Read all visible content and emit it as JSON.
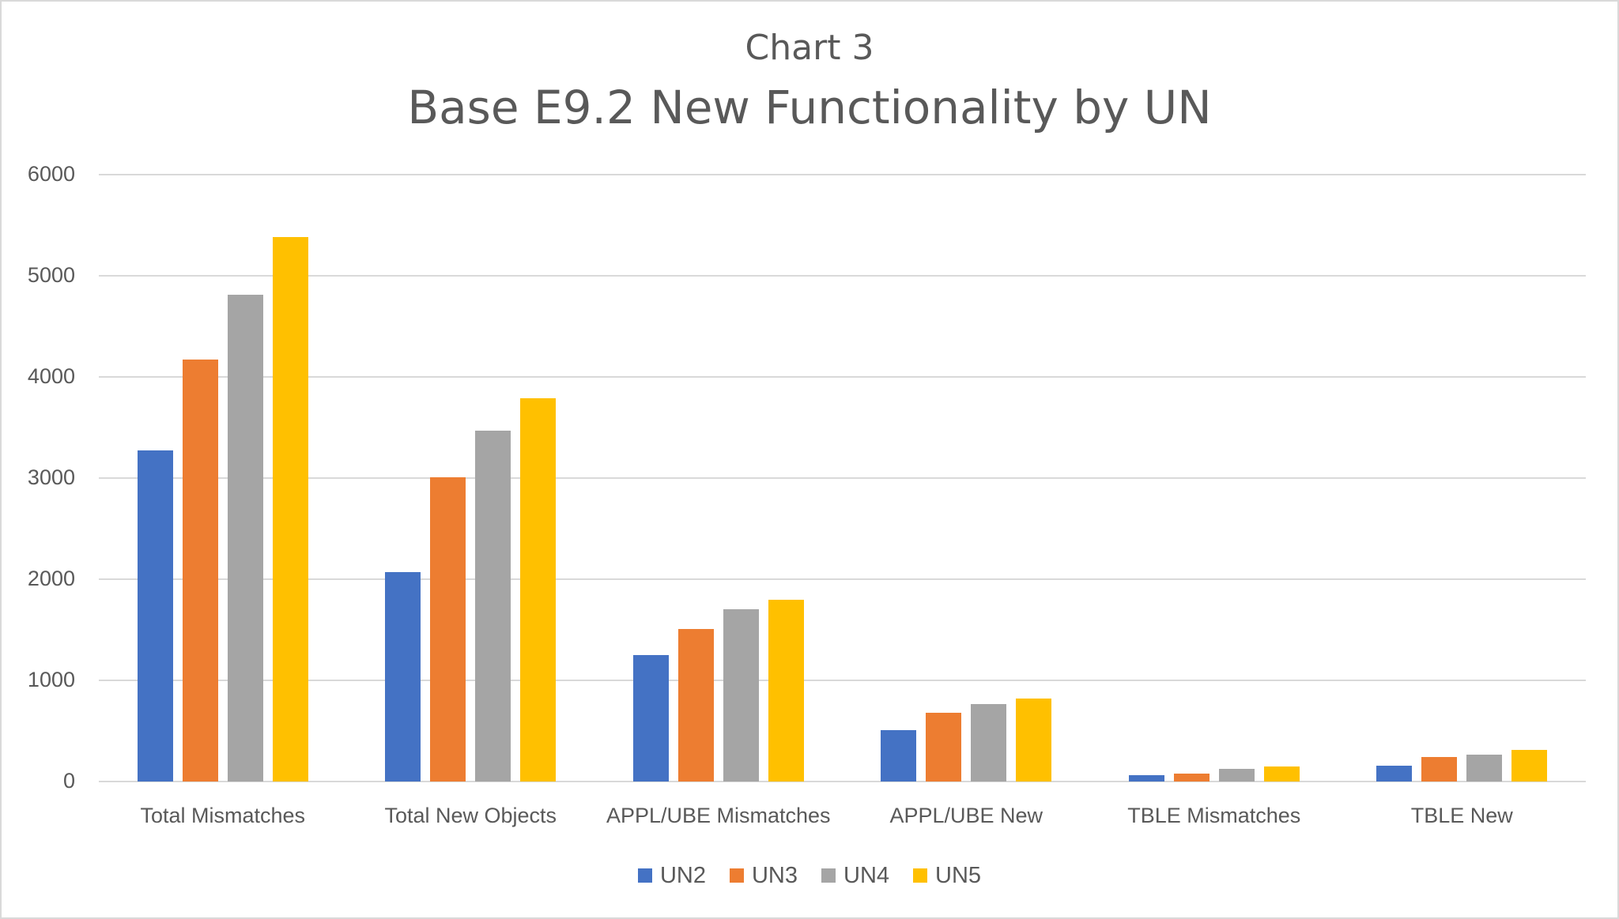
{
  "chart": {
    "subtitle": "Chart 3",
    "title": "Base E9.2 New Functionality by UN"
  },
  "legend": [
    {
      "label": "UN2",
      "color": "#4472c4"
    },
    {
      "label": "UN3",
      "color": "#ed7d31"
    },
    {
      "label": "UN4",
      "color": "#a5a5a5"
    },
    {
      "label": "UN5",
      "color": "#ffc000"
    }
  ],
  "y_ticks": [
    "0",
    "1000",
    "2000",
    "3000",
    "4000",
    "5000",
    "6000"
  ],
  "chart_data": {
    "type": "bar",
    "title": "Base E9.2 New Functionality by UN",
    "subtitle": "Chart 3",
    "xlabel": "",
    "ylabel": "",
    "ylim": [
      0,
      6000
    ],
    "y_ticks": [
      0,
      1000,
      2000,
      3000,
      4000,
      5000,
      6000
    ],
    "grid": true,
    "legend_position": "bottom",
    "categories": [
      "Total Mismatches",
      "Total New Objects",
      "APPL/UBE Mismatches",
      "APPL/UBE New",
      "TBLE Mismatches",
      "TBLE New"
    ],
    "series": [
      {
        "name": "UN2",
        "color": "#4472c4",
        "values": [
          3270,
          2070,
          1250,
          510,
          60,
          155
        ]
      },
      {
        "name": "UN3",
        "color": "#ed7d31",
        "values": [
          4170,
          3010,
          1510,
          680,
          80,
          240
        ]
      },
      {
        "name": "UN4",
        "color": "#a5a5a5",
        "values": [
          4810,
          3470,
          1700,
          765,
          125,
          265
        ]
      },
      {
        "name": "UN5",
        "color": "#ffc000",
        "values": [
          5380,
          3790,
          1800,
          820,
          150,
          310
        ]
      }
    ]
  }
}
